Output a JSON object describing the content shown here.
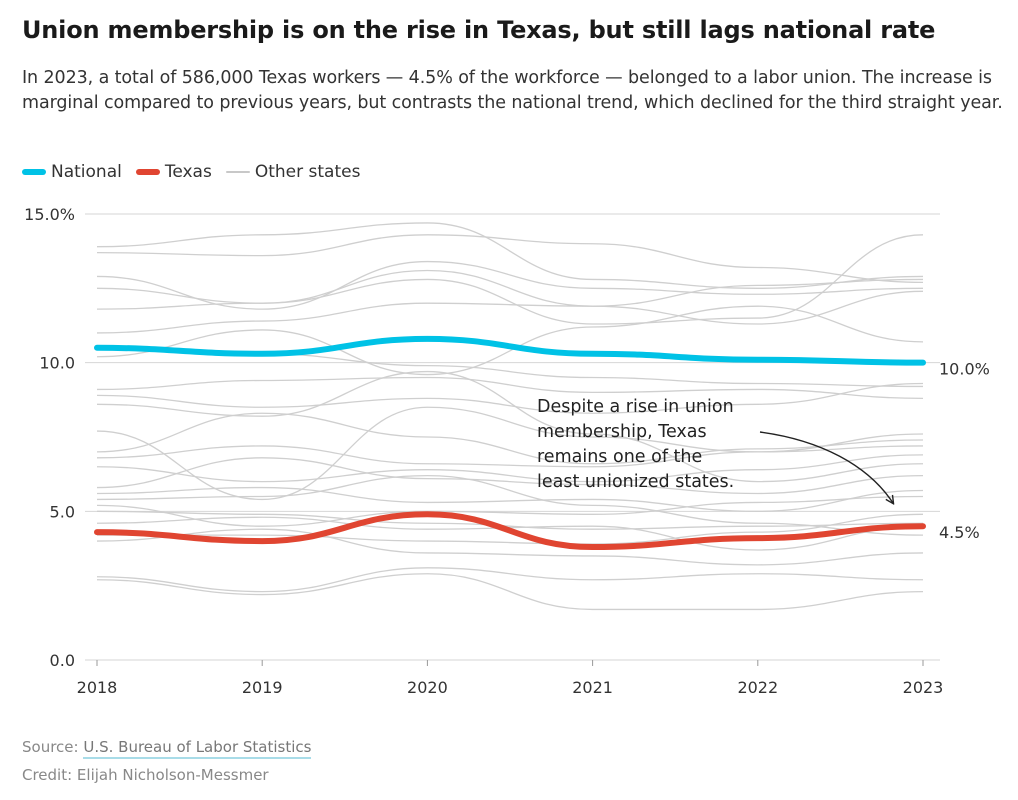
{
  "header": {
    "title": "Union membership is on the rise in Texas, but still lags national rate",
    "subtitle": "In 2023, a total of 586,000 Texas workers — 4.5% of the workforce — belonged to a labor union. The increase is marginal compared to previous years, but contrasts the national trend, which declined for the third straight year."
  },
  "legend": {
    "national": "National",
    "texas": "Texas",
    "other": "Other states"
  },
  "colors": {
    "national": "#00c2e6",
    "texas": "#e04531",
    "other": "#cfcfcf",
    "grid": "#d6d6d6"
  },
  "chart_data": {
    "type": "line",
    "x": [
      "2018",
      "2019",
      "2020",
      "2021",
      "2022",
      "2023"
    ],
    "ylim": [
      0,
      15
    ],
    "yticks": [
      0,
      5,
      10,
      15
    ],
    "ytick_labels": [
      "0.0",
      "5.0",
      "10.0",
      "15.0%"
    ],
    "series": [
      {
        "name": "National",
        "values": [
          10.5,
          10.3,
          10.8,
          10.3,
          10.1,
          10.0
        ],
        "end_label": "10.0%"
      },
      {
        "name": "Texas",
        "values": [
          4.3,
          4.0,
          4.9,
          3.8,
          4.1,
          4.5
        ],
        "end_label": "4.5%"
      }
    ],
    "other_states": [
      [
        13.9,
        14.3,
        14.7,
        12.8,
        12.5,
        12.9
      ],
      [
        13.7,
        13.6,
        14.3,
        14.0,
        13.2,
        12.7
      ],
      [
        12.9,
        11.8,
        13.4,
        12.5,
        12.3,
        12.5
      ],
      [
        12.5,
        12.0,
        13.1,
        11.9,
        12.6,
        12.8
      ],
      [
        11.8,
        12.0,
        12.8,
        11.3,
        11.5,
        14.3
      ],
      [
        11.0,
        11.4,
        12.0,
        11.9,
        11.3,
        12.4
      ],
      [
        10.2,
        11.1,
        9.6,
        11.2,
        11.9,
        10.7
      ],
      [
        10.5,
        10.3,
        9.9,
        9.5,
        9.3,
        9.2
      ],
      [
        9.1,
        9.4,
        9.5,
        9.0,
        9.1,
        8.8
      ],
      [
        8.9,
        8.5,
        8.8,
        8.3,
        8.6,
        9.3
      ],
      [
        8.6,
        8.2,
        9.7,
        7.6,
        6.0,
        6.6
      ],
      [
        7.7,
        5.4,
        8.5,
        7.5,
        7.0,
        7.2
      ],
      [
        7.0,
        8.3,
        7.5,
        6.6,
        7.1,
        7.4
      ],
      [
        6.8,
        7.2,
        6.6,
        6.5,
        7.0,
        7.6
      ],
      [
        6.5,
        6.0,
        6.4,
        6.0,
        6.4,
        6.9
      ],
      [
        5.8,
        6.8,
        6.1,
        5.9,
        5.6,
        6.2
      ],
      [
        5.6,
        5.8,
        5.3,
        5.4,
        5.0,
        5.7
      ],
      [
        5.4,
        5.5,
        6.2,
        5.2,
        4.6,
        4.2
      ],
      [
        5.2,
        4.5,
        5.0,
        4.9,
        5.3,
        5.5
      ],
      [
        5.0,
        4.9,
        4.6,
        4.4,
        4.5,
        4.6
      ],
      [
        4.6,
        4.8,
        4.4,
        4.5,
        3.7,
        4.5
      ],
      [
        4.2,
        4.2,
        4.0,
        3.9,
        4.3,
        4.9
      ],
      [
        4.0,
        4.4,
        3.6,
        3.5,
        3.2,
        3.6
      ],
      [
        2.8,
        2.3,
        3.1,
        2.7,
        2.9,
        2.7
      ],
      [
        2.7,
        2.2,
        2.9,
        1.7,
        1.7,
        2.3
      ]
    ],
    "annotation": {
      "lines": [
        "Despite a rise in union",
        "membership, Texas",
        "remains one of the",
        "least unionized states."
      ]
    }
  },
  "footer": {
    "source_prefix": "Source: ",
    "source_link": "U.S. Bureau of Labor Statistics",
    "credit": "Credit: Elijah Nicholson-Messmer"
  }
}
